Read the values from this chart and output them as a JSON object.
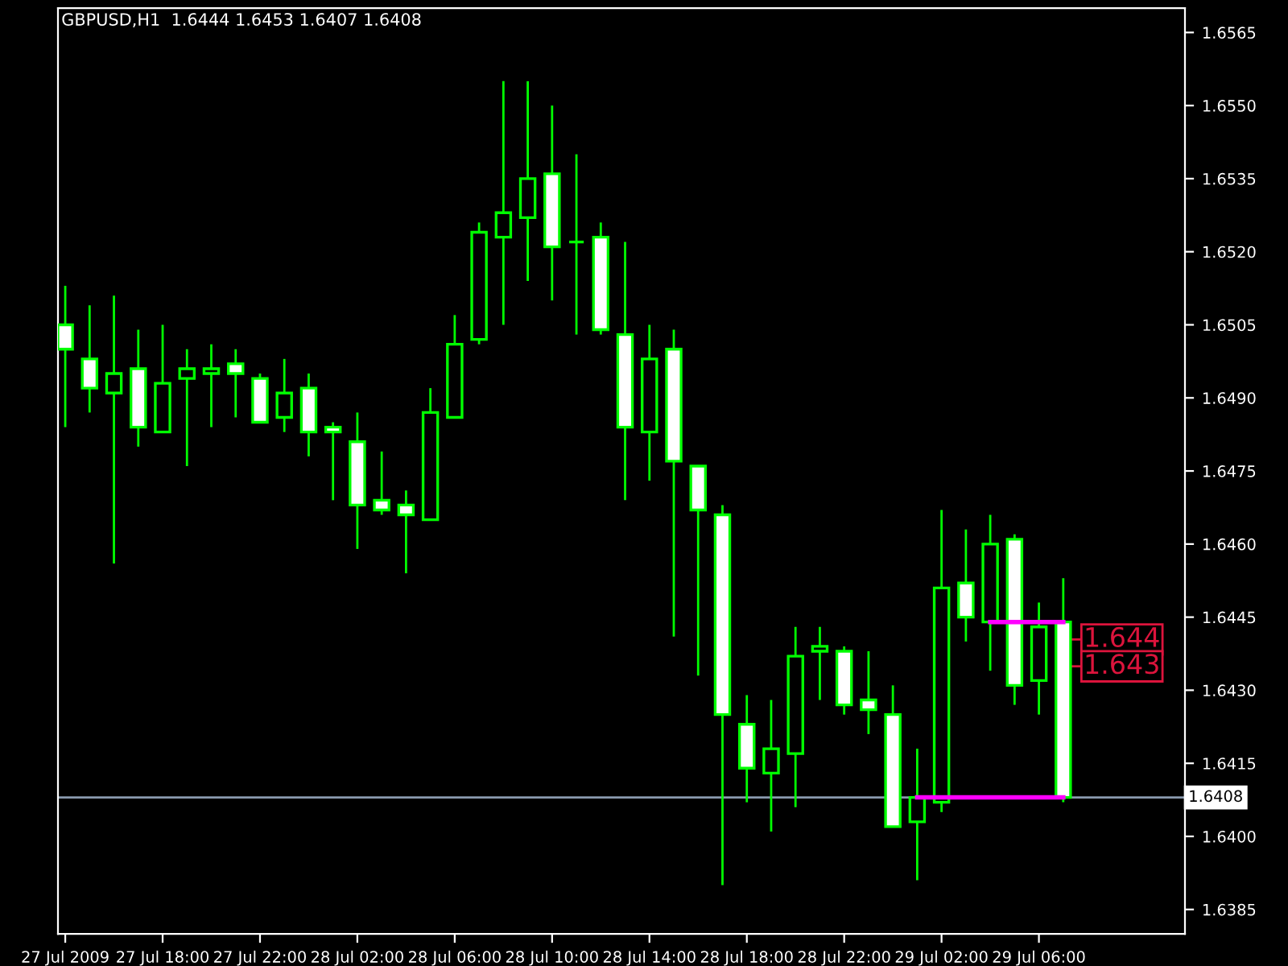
{
  "chart_data": {
    "type": "candlestick",
    "title": "GBPUSD,H1  1.6444 1.6453 1.6407 1.6408",
    "x": [
      "2009-07-27T14:00",
      "2009-07-27T15:00",
      "2009-07-27T16:00",
      "2009-07-27T17:00",
      "2009-07-27T18:00",
      "2009-07-27T19:00",
      "2009-07-27T20:00",
      "2009-07-27T21:00",
      "2009-07-27T22:00",
      "2009-07-27T23:00",
      "2009-07-28T00:00",
      "2009-07-28T01:00",
      "2009-07-28T02:00",
      "2009-07-28T03:00",
      "2009-07-28T04:00",
      "2009-07-28T05:00",
      "2009-07-28T06:00",
      "2009-07-28T07:00",
      "2009-07-28T08:00",
      "2009-07-28T09:00",
      "2009-07-28T10:00",
      "2009-07-28T11:00",
      "2009-07-28T12:00",
      "2009-07-28T13:00",
      "2009-07-28T14:00",
      "2009-07-28T15:00",
      "2009-07-28T16:00",
      "2009-07-28T17:00",
      "2009-07-28T18:00",
      "2009-07-28T19:00",
      "2009-07-28T20:00",
      "2009-07-28T21:00",
      "2009-07-28T22:00",
      "2009-07-28T23:00",
      "2009-07-29T00:00",
      "2009-07-29T01:00",
      "2009-07-29T02:00",
      "2009-07-29T03:00",
      "2009-07-29T04:00",
      "2009-07-29T05:00",
      "2009-07-29T06:00",
      "2009-07-29T07:00"
    ],
    "xlim": [
      "2009-07-27T13:42",
      "2009-07-29T12:00"
    ],
    "xticks": [
      {
        "value": "2009-07-27T14:00",
        "label": "27 Jul 2009"
      },
      {
        "value": "2009-07-27T18:00",
        "label": "27 Jul 18:00"
      },
      {
        "value": "2009-07-27T22:00",
        "label": "27 Jul 22:00"
      },
      {
        "value": "2009-07-28T02:00",
        "label": "28 Jul 02:00"
      },
      {
        "value": "2009-07-28T06:00",
        "label": "28 Jul 06:00"
      },
      {
        "value": "2009-07-28T10:00",
        "label": "28 Jul 10:00"
      },
      {
        "value": "2009-07-28T14:00",
        "label": "28 Jul 14:00"
      },
      {
        "value": "2009-07-28T18:00",
        "label": "28 Jul 18:00"
      },
      {
        "value": "2009-07-28T22:00",
        "label": "28 Jul 22:00"
      },
      {
        "value": "2009-07-29T02:00",
        "label": "29 Jul 02:00"
      },
      {
        "value": "2009-07-29T06:00",
        "label": "29 Jul 06:00"
      }
    ],
    "ohlc": [
      [
        1.6505,
        1.6513,
        1.6484,
        1.65
      ],
      [
        1.6498,
        1.6509,
        1.6487,
        1.6492
      ],
      [
        1.6491,
        1.6511,
        1.6456,
        1.6495
      ],
      [
        1.6496,
        1.6504,
        1.648,
        1.6484
      ],
      [
        1.6483,
        1.6505,
        1.6483,
        1.6493
      ],
      [
        1.6494,
        1.65,
        1.6476,
        1.6496
      ],
      [
        1.6495,
        1.6501,
        1.6484,
        1.6496
      ],
      [
        1.6497,
        1.65,
        1.6486,
        1.6495
      ],
      [
        1.6494,
        1.6495,
        1.6485,
        1.6485
      ],
      [
        1.6486,
        1.6498,
        1.6483,
        1.6491
      ],
      [
        1.6492,
        1.6495,
        1.6478,
        1.6483
      ],
      [
        1.6484,
        1.6485,
        1.6469,
        1.6483
      ],
      [
        1.6481,
        1.6487,
        1.6459,
        1.6468
      ],
      [
        1.6469,
        1.6479,
        1.6466,
        1.6467
      ],
      [
        1.6468,
        1.6471,
        1.6454,
        1.6466
      ],
      [
        1.6465,
        1.6492,
        1.6465,
        1.6487
      ],
      [
        1.6486,
        1.6507,
        1.6486,
        1.6501
      ],
      [
        1.6502,
        1.6526,
        1.6501,
        1.6524
      ],
      [
        1.6523,
        1.6555,
        1.6505,
        1.6528
      ],
      [
        1.6527,
        1.6555,
        1.6514,
        1.6535
      ],
      [
        1.6536,
        1.655,
        1.651,
        1.6521
      ],
      [
        1.6522,
        1.654,
        1.6503,
        1.6522
      ],
      [
        1.6523,
        1.6526,
        1.6503,
        1.6504
      ],
      [
        1.6503,
        1.6522,
        1.6469,
        1.6484
      ],
      [
        1.6483,
        1.6505,
        1.6473,
        1.6498
      ],
      [
        1.65,
        1.6504,
        1.6441,
        1.6477
      ],
      [
        1.6476,
        1.6476,
        1.6433,
        1.6467
      ],
      [
        1.6466,
        1.6468,
        1.639,
        1.6425
      ],
      [
        1.6423,
        1.6429,
        1.6407,
        1.6414
      ],
      [
        1.6413,
        1.6428,
        1.6401,
        1.6418
      ],
      [
        1.6417,
        1.6443,
        1.6406,
        1.6437
      ],
      [
        1.6438,
        1.6443,
        1.6428,
        1.6439
      ],
      [
        1.6438,
        1.6439,
        1.6425,
        1.6427
      ],
      [
        1.6428,
        1.6438,
        1.6421,
        1.6426
      ],
      [
        1.6425,
        1.6431,
        1.6402,
        1.6402
      ],
      [
        1.6403,
        1.6418,
        1.6391,
        1.6408
      ],
      [
        1.6407,
        1.6467,
        1.6405,
        1.6451
      ],
      [
        1.6452,
        1.6463,
        1.644,
        1.6445
      ],
      [
        1.6444,
        1.6466,
        1.6434,
        1.646
      ],
      [
        1.6461,
        1.6462,
        1.6427,
        1.6431
      ],
      [
        1.6432,
        1.6448,
        1.6425,
        1.6443
      ],
      [
        1.6444,
        1.6453,
        1.6407,
        1.6408
      ]
    ],
    "color": "#00ff00",
    "colors": [
      "#ffffff",
      "#ffffff",
      "#000000",
      "#ffffff",
      "#000000",
      "#000000",
      "#000000",
      "#ffffff",
      "#ffffff",
      "#000000",
      "#ffffff",
      "#ffffff",
      "#ffffff",
      "#ffffff",
      "#ffffff",
      "#000000",
      "#000000",
      "#000000",
      "#000000",
      "#000000",
      "#ffffff",
      "#00ff00",
      "#ffffff",
      "#ffffff",
      "#000000",
      "#ffffff",
      "#ffffff",
      "#ffffff",
      "#ffffff",
      "#000000",
      "#000000",
      "#000000",
      "#ffffff",
      "#ffffff",
      "#ffffff",
      "#000000",
      "#000000",
      "#ffffff",
      "#000000",
      "#ffffff",
      "#000000",
      "#ffffff"
    ],
    "series": [
      {
        "type": "line",
        "color": "#ff00ff",
        "values": [
          null,
          null,
          null,
          null,
          null,
          null,
          null,
          null,
          null,
          null,
          null,
          null,
          null,
          null,
          null,
          null,
          null,
          null,
          null,
          null,
          null,
          null,
          null,
          null,
          null,
          null,
          null,
          null,
          null,
          null,
          null,
          null,
          null,
          null,
          null,
          null,
          null,
          null,
          1.6444,
          1.6444,
          1.6444,
          1.6444
        ]
      },
      {
        "type": "line",
        "color": "#ff00ff",
        "values": [
          null,
          null,
          null,
          null,
          null,
          null,
          null,
          null,
          null,
          null,
          null,
          null,
          null,
          null,
          null,
          null,
          null,
          null,
          null,
          null,
          null,
          null,
          null,
          null,
          null,
          null,
          null,
          null,
          null,
          null,
          null,
          null,
          null,
          null,
          null,
          1.6408,
          1.6408,
          1.6408,
          1.6408,
          1.6408,
          1.6408,
          1.6408
        ]
      }
    ],
    "ylim": [
      1.638,
      1.657
    ],
    "yticks": [
      1.6385,
      {
        "value": 1.64,
        "label": "1.6400"
      },
      1.6415,
      {
        "value": 1.643,
        "label": "1.6430"
      },
      1.6445,
      {
        "value": 1.646,
        "label": "1.6460"
      },
      1.6475,
      {
        "value": 1.649,
        "label": "1.6490"
      },
      1.6505,
      {
        "value": 1.652,
        "label": "1.6520"
      },
      1.6535,
      {
        "value": 1.655,
        "label": "1.6550"
      },
      1.6565
    ],
    "ref_lines": [
      {
        "axis": "y",
        "value": 1.6408,
        "label": "1.6408",
        "color": "#8a9aae"
      }
    ],
    "annotations": [
      "1.644",
      "1.643"
    ],
    "grid": false,
    "legend": false
  }
}
